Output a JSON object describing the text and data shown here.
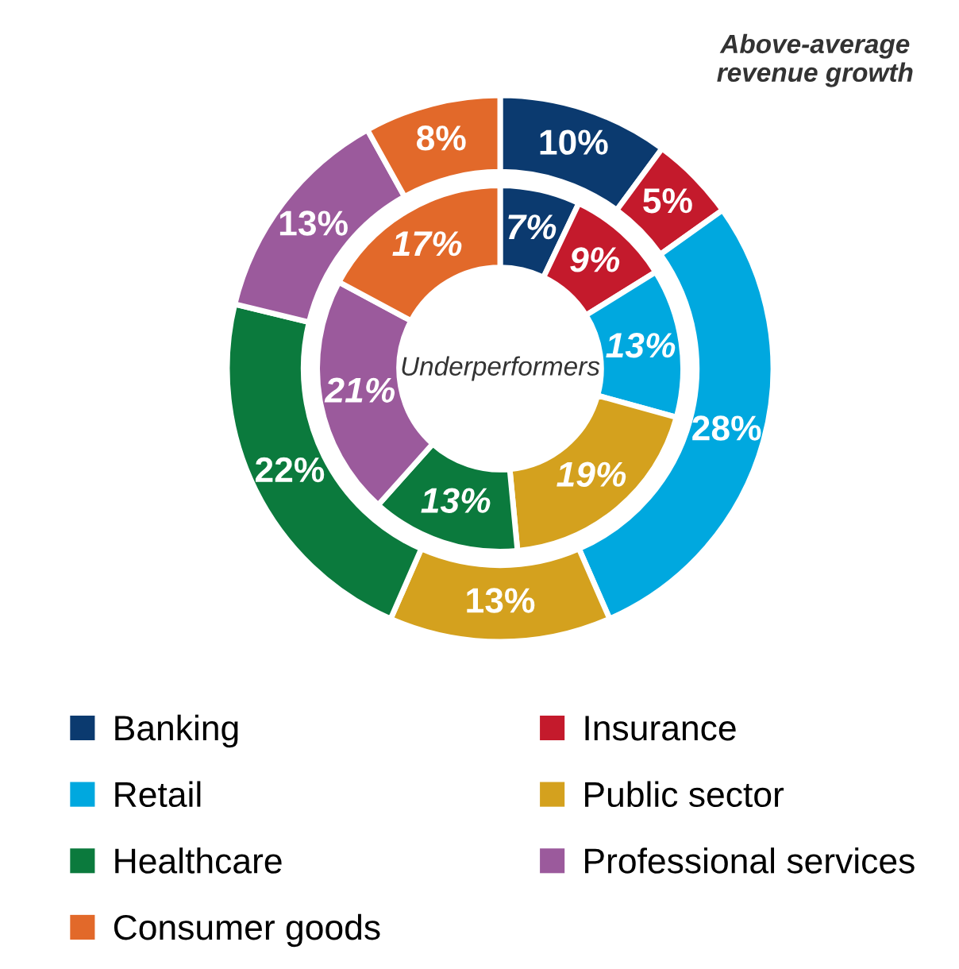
{
  "chart_data": {
    "type": "donut",
    "categories": [
      "Banking",
      "Insurance",
      "Retail",
      "Public sector",
      "Healthcare",
      "Professional services",
      "Consumer goods"
    ],
    "colors": [
      "#0b3a6f",
      "#c41a2c",
      "#00a8df",
      "#d4a11e",
      "#0b7a3d",
      "#9b5a9c",
      "#e2692a"
    ],
    "series": [
      {
        "name": "Above-average revenue growth",
        "values": [
          10,
          5,
          28,
          13,
          22,
          13,
          8
        ],
        "value_labels": [
          "10%",
          "5%",
          "28%",
          "13%",
          "22%",
          "13%",
          "8%"
        ]
      },
      {
        "name": "Underperformers",
        "values": [
          7,
          9,
          13,
          19,
          13,
          21,
          17
        ],
        "value_labels": [
          "7%",
          "9%",
          "13%",
          "19%",
          "13%",
          "21%",
          "17%"
        ]
      }
    ],
    "legend": "bottom"
  }
}
